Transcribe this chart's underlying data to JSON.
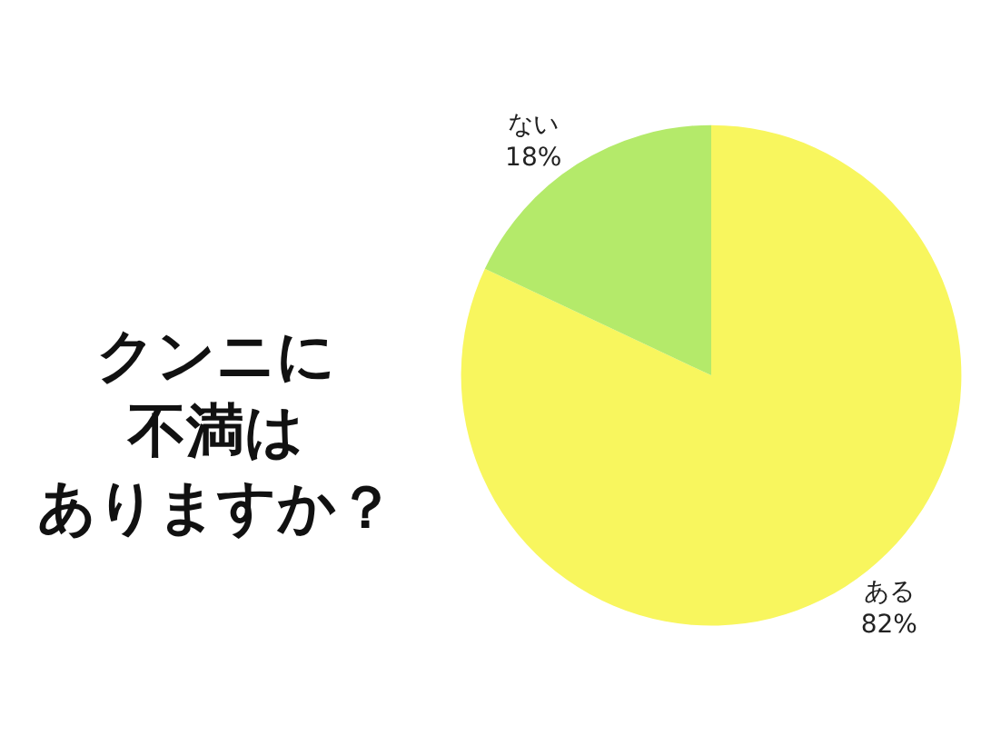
{
  "chart_data": {
    "type": "pie",
    "title": "クンニに不満はありますか？",
    "categories": [
      "ある",
      "ない"
    ],
    "values": [
      82,
      18
    ],
    "value_labels": [
      "82%",
      "18%"
    ],
    "colors": [
      "#f8f65e",
      "#b4ea6a"
    ],
    "legend": false
  }
}
